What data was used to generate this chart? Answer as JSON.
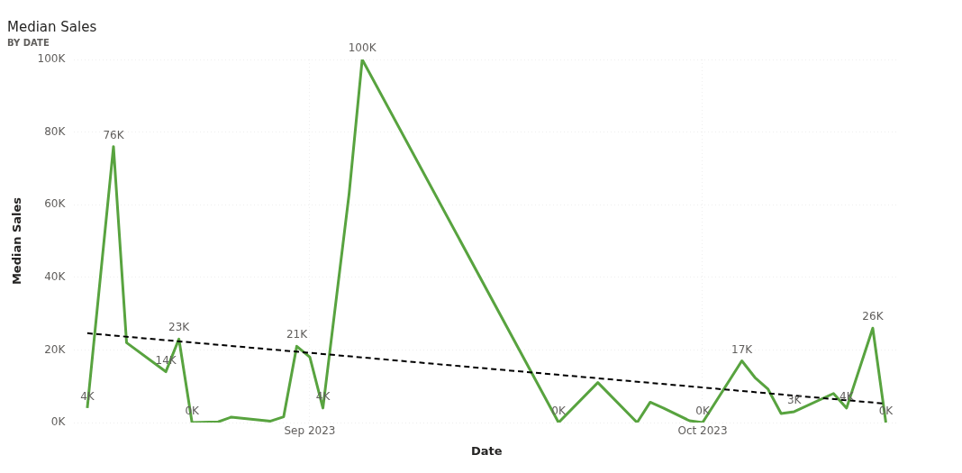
{
  "chart_data": {
    "type": "line",
    "title": "Median Sales",
    "subtitle": "BY DATE",
    "xlabel": "Date",
    "ylabel": "Median Sales",
    "x": [
      "2023-08-15",
      "2023-08-17",
      "2023-08-18",
      "2023-08-21",
      "2023-08-22",
      "2023-08-23",
      "2023-08-25",
      "2023-08-26",
      "2023-08-29",
      "2023-08-30",
      "2023-08-31",
      "2023-09-01",
      "2023-09-02",
      "2023-09-04",
      "2023-09-05",
      "2023-09-20",
      "2023-09-23",
      "2023-09-26",
      "2023-09-27",
      "2023-09-28",
      "2023-09-30",
      "2023-10-01",
      "2023-10-04",
      "2023-10-05",
      "2023-10-06",
      "2023-10-07",
      "2023-10-08",
      "2023-10-11",
      "2023-10-12",
      "2023-10-14",
      "2023-10-15"
    ],
    "series": [
      {
        "color": "#58a33f",
        "values": [
          4000,
          76000,
          22000,
          14000,
          23000,
          0,
          200,
          1500,
          400,
          1600,
          21000,
          18000,
          4000,
          63000,
          100000,
          0,
          11000,
          0,
          5600,
          4000,
          500,
          0,
          17000,
          12400,
          9200,
          2500,
          3000,
          8000,
          4000,
          26000,
          0
        ],
        "value_labels": [
          "4K",
          "76K",
          null,
          "14K",
          "23K",
          "0K",
          null,
          null,
          null,
          null,
          "21K",
          null,
          "4K",
          null,
          "100K",
          "0K",
          null,
          null,
          null,
          null,
          null,
          "0K",
          "17K",
          null,
          null,
          null,
          "3K",
          null,
          "4K",
          "26K",
          "0K"
        ]
      },
      {
        "type": "line",
        "color": "#000000",
        "line_style": "dashed",
        "x": [
          "2023-08-15",
          "2023-10-15"
        ],
        "values": [
          24600,
          5200
        ]
      }
    ],
    "xlim": [
      "2023-08-14",
      "2023-10-16"
    ],
    "xticks": [
      {
        "value": "2023-09-01",
        "label": "Sep 2023"
      },
      {
        "value": "2023-10-01",
        "label": "Oct 2023"
      }
    ],
    "ylim": [
      0,
      100000
    ],
    "yticks": [
      {
        "value": 0,
        "label": "0K"
      },
      {
        "value": 20000,
        "label": "20K"
      },
      {
        "value": 40000,
        "label": "40K"
      },
      {
        "value": 60000,
        "label": "60K"
      },
      {
        "value": 80000,
        "label": "80K"
      },
      {
        "value": 100000,
        "label": "100K"
      }
    ],
    "grid": true,
    "legend": false
  }
}
